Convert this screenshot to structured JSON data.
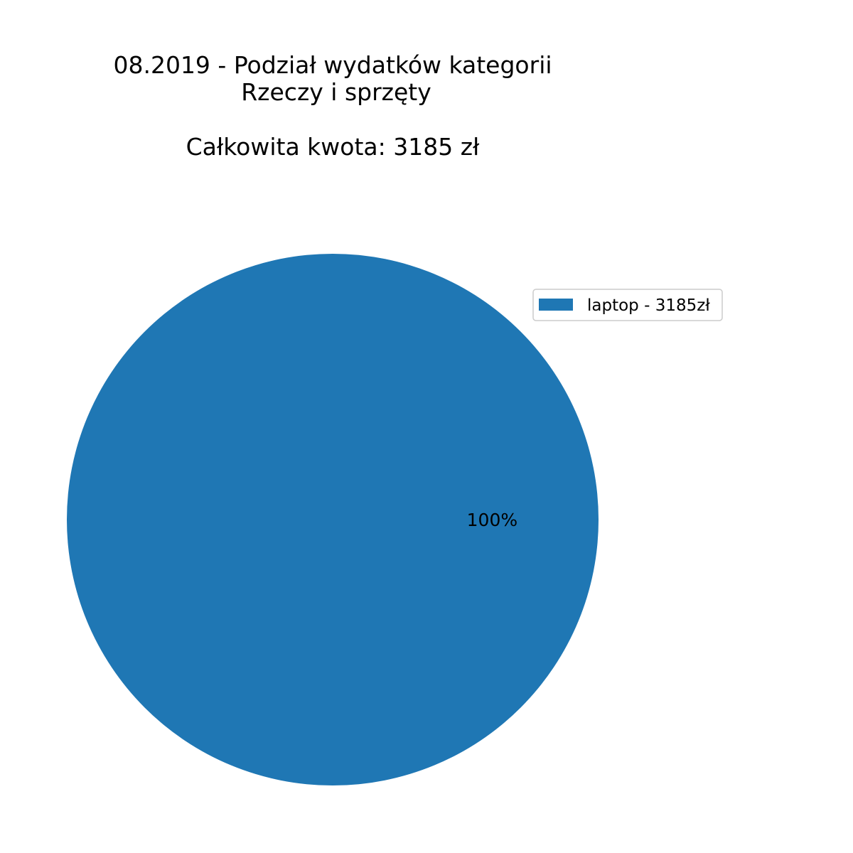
{
  "chart_data": {
    "type": "pie",
    "title_lines": [
      "08.2019 - Podział wydatków kategorii",
      "Rzeczy i sprzęty",
      "",
      "Całkowita kwota: 3185 zł"
    ],
    "slices": [
      {
        "label": "laptop - 3185zł",
        "value": 3185,
        "percent_label": "100%",
        "color": "#1f77b4"
      }
    ],
    "legend_position": "upper-right"
  }
}
